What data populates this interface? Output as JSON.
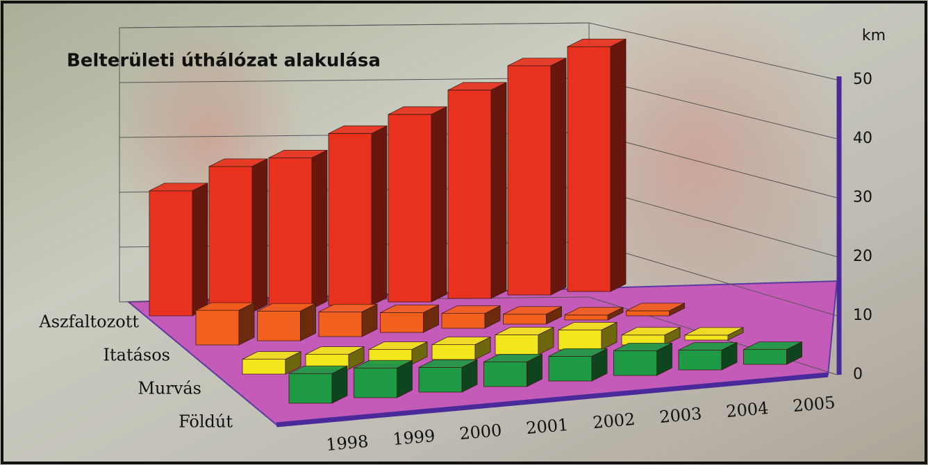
{
  "chart_data": {
    "type": "bar3d",
    "title": "Belterületi úthálózat alakulása",
    "unit": "km",
    "categories": [
      "1998",
      "1999",
      "2000",
      "2001",
      "2002",
      "2003",
      "2004",
      "2005"
    ],
    "series": [
      {
        "name": "Aszfaltozott",
        "color": "#e8321e",
        "values": [
          24,
          28,
          29,
          33,
          36,
          40,
          44,
          47
        ]
      },
      {
        "name": "Itatásos",
        "color": "#f2601e",
        "values": [
          7,
          6,
          5,
          4,
          3,
          2,
          1,
          1
        ]
      },
      {
        "name": "Murvás",
        "color": "#f2e61c",
        "values": [
          3,
          3,
          3,
          3,
          4,
          4,
          2,
          1
        ]
      },
      {
        "name": "Földút",
        "color": "#1e9a44",
        "values": [
          6,
          6,
          5,
          5,
          5,
          5,
          4,
          3
        ]
      }
    ],
    "ylim": [
      0,
      50
    ],
    "yticks": [
      0,
      10,
      20,
      30,
      40,
      50
    ],
    "grid": true
  }
}
